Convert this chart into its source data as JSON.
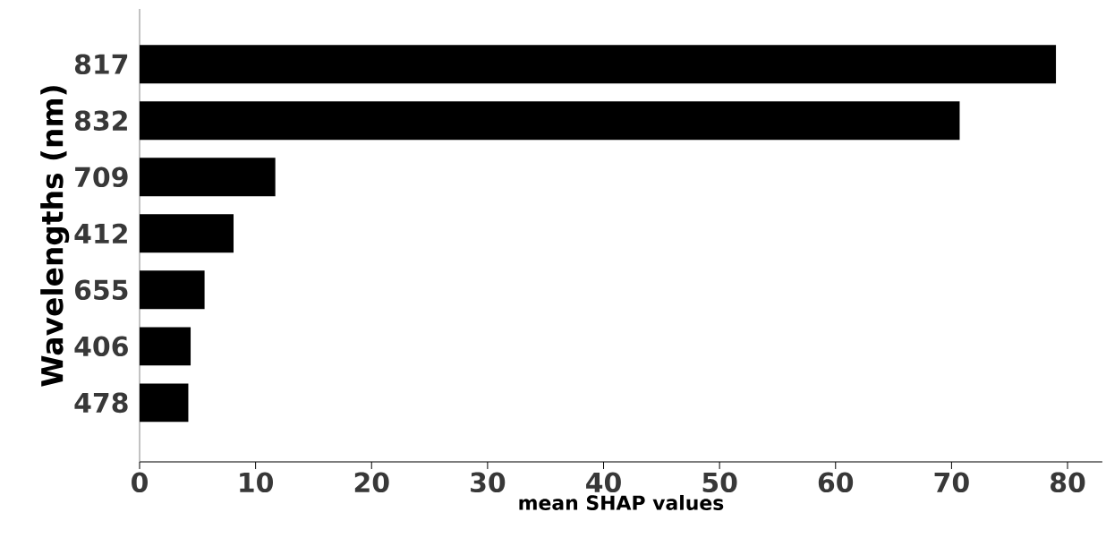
{
  "chart_data": {
    "type": "bar",
    "orientation": "horizontal",
    "xlabel": "mean SHAP values",
    "ylabel": "Wavelengths (nm)",
    "categories": [
      "817",
      "832",
      "709",
      "412",
      "655",
      "406",
      "478"
    ],
    "values": [
      79.0,
      70.7,
      11.7,
      8.1,
      5.6,
      4.4,
      4.2
    ],
    "color": "#000000",
    "xlim": [
      0,
      83
    ],
    "xticks": [
      0,
      10,
      20,
      30,
      40,
      50,
      60,
      70,
      80
    ]
  }
}
